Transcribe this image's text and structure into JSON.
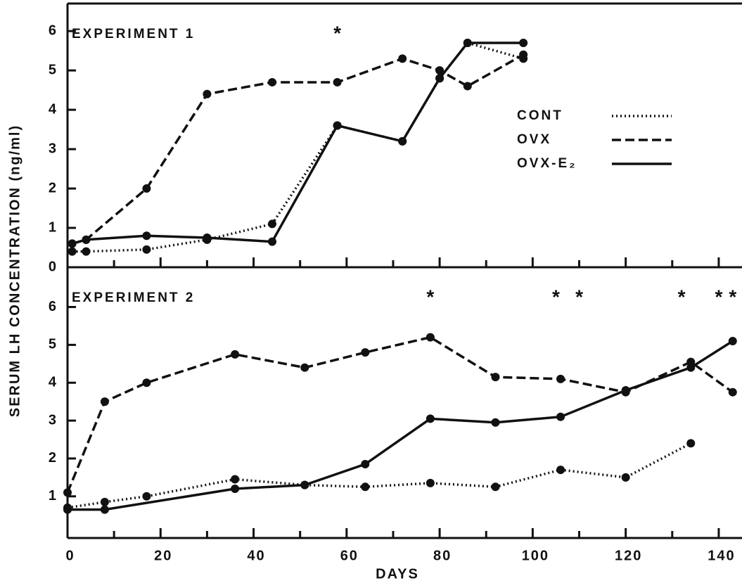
{
  "ylabel": "SERUM LH CONCENTRATION (ng/ml)",
  "chart_data": [
    {
      "type": "line",
      "title": "EXPERIMENT 1",
      "legend": "upper right",
      "xlim": [
        0,
        145
      ],
      "ylim": [
        0,
        6.7
      ],
      "yticks": [
        0,
        1,
        2,
        3,
        4,
        5,
        6
      ],
      "annotations": [
        {
          "text": "*",
          "x": 58
        }
      ],
      "series": [
        {
          "name": "CONT",
          "color": "#111111",
          "style": "dotted",
          "x": [
            1,
            4,
            17,
            30,
            44,
            58,
            72,
            80,
            86,
            98
          ],
          "values": [
            0.4,
            0.4,
            0.45,
            0.7,
            1.1,
            3.6,
            3.2,
            4.8,
            5.7,
            5.3
          ]
        },
        {
          "name": "OVX",
          "color": "#111111",
          "style": "dashed",
          "x": [
            1,
            4,
            17,
            30,
            44,
            58,
            72,
            80,
            86,
            98
          ],
          "values": [
            0.6,
            0.7,
            2.0,
            4.4,
            4.7,
            4.7,
            5.3,
            5.0,
            4.6,
            5.4
          ]
        },
        {
          "name": "OVX-E₂",
          "color": "#111111",
          "style": "solid",
          "x": [
            1,
            4,
            17,
            30,
            44,
            58,
            72,
            80,
            86,
            98
          ],
          "values": [
            0.6,
            0.7,
            0.8,
            0.75,
            0.65,
            3.6,
            3.2,
            4.8,
            5.7,
            5.7
          ]
        }
      ]
    },
    {
      "type": "line",
      "title": "EXPERIMENT 2",
      "xlabel": "DAYS",
      "xlim": [
        0,
        145
      ],
      "ylim": [
        -0.1,
        7.05
      ],
      "yticks": [
        1,
        2,
        3,
        4,
        5,
        6
      ],
      "xticks": [
        0,
        20,
        40,
        60,
        80,
        100,
        120,
        140
      ],
      "xminorticks": [
        10,
        30,
        50,
        70,
        90,
        110,
        130
      ],
      "annotations": [
        {
          "text": "*",
          "x": 78
        },
        {
          "text": "*",
          "x": 105
        },
        {
          "text": "*",
          "x": 110
        },
        {
          "text": "*",
          "x": 132
        },
        {
          "text": "*",
          "x": 140
        },
        {
          "text": "*",
          "x": 143
        }
      ],
      "series": [
        {
          "name": "CONT",
          "color": "#111111",
          "style": "dotted",
          "x": [
            0,
            8,
            17,
            36,
            51,
            64,
            78,
            92,
            106,
            120,
            134
          ],
          "values": [
            0.7,
            0.85,
            1.0,
            1.45,
            1.3,
            1.25,
            1.35,
            1.25,
            1.7,
            1.5,
            2.4
          ]
        },
        {
          "name": "OVX",
          "color": "#111111",
          "style": "dashed",
          "x": [
            0,
            8,
            17,
            36,
            51,
            64,
            78,
            92,
            106,
            120,
            134,
            143
          ],
          "values": [
            1.1,
            3.5,
            4.0,
            4.75,
            4.4,
            4.8,
            5.2,
            4.15,
            4.1,
            3.75,
            4.55,
            3.75
          ]
        },
        {
          "name": "OVX-E₂",
          "color": "#111111",
          "style": "solid",
          "x": [
            0,
            8,
            36,
            51,
            64,
            78,
            92,
            106,
            120,
            134,
            143
          ],
          "values": [
            0.65,
            0.65,
            1.2,
            1.3,
            1.85,
            3.05,
            2.95,
            3.1,
            3.8,
            4.4,
            5.1
          ]
        }
      ]
    }
  ]
}
